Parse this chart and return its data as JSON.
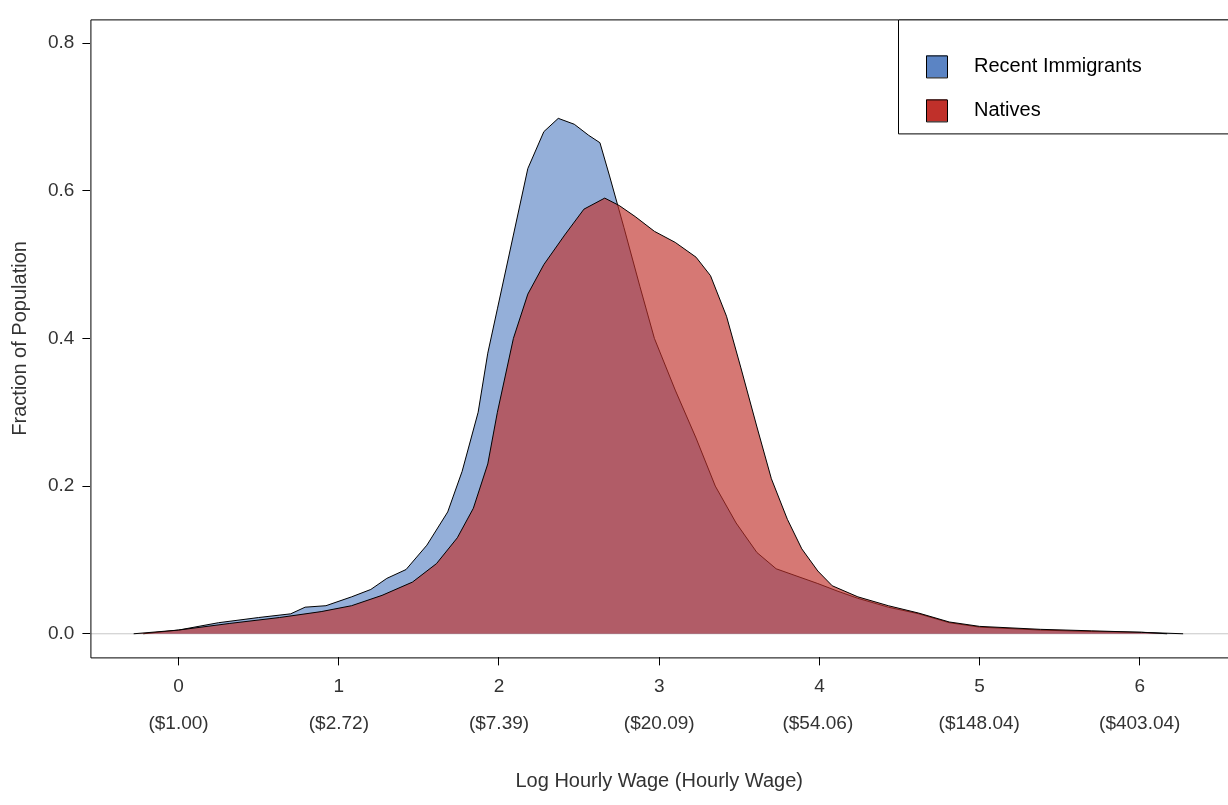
{
  "chart_data": {
    "type": "area",
    "xlabel": "Log Hourly Wage (Hourly Wage)",
    "ylabel": "Fraction of Population",
    "xlim": [
      -0.55,
      6.55
    ],
    "ylim": [
      -0.032,
      0.832
    ],
    "xticks": [
      0,
      1,
      2,
      3,
      4,
      5,
      6
    ],
    "x2lim": [
      0.577,
      699.2
    ],
    "log": "x2",
    "x2ticks": [
      {
        "value": 1,
        "label": "($1.00)"
      },
      {
        "value": 2.72,
        "label": "($2.72)"
      },
      {
        "value": 7.39,
        "label": "($7.39)"
      },
      {
        "value": 20.09,
        "label": "($20.09)"
      },
      {
        "value": 54.06,
        "label": "($54.06)"
      },
      {
        "value": 148.04,
        "label": "($148.04)"
      },
      {
        "value": 403.04,
        "label": "($403.04)"
      }
    ],
    "yticks": [
      {
        "value": 0,
        "label": "0.0"
      },
      {
        "value": 0.2,
        "label": "0.2"
      },
      {
        "value": 0.4,
        "label": "0.4"
      },
      {
        "value": 0.6,
        "label": "0.6"
      },
      {
        "value": 0.8,
        "label": "0.8"
      }
    ],
    "grid": false,
    "legend": "top right",
    "ref_lines": [
      {
        "axis": "y",
        "value": 0,
        "color": "#c8c8c8"
      }
    ],
    "series": [
      {
        "name": "Natives",
        "color": "#c0302a",
        "x": [
          -0.28,
          0,
          0.32,
          0.63,
          0.89,
          1.08,
          1.27,
          1.46,
          1.61,
          1.74,
          1.84,
          1.93,
          1.99,
          2.09,
          2.18,
          2.28,
          2.41,
          2.53,
          2.66,
          2.75,
          2.85,
          2.97,
          3.1,
          3.23,
          3.32,
          3.42,
          3.51,
          3.61,
          3.7,
          3.8,
          3.89,
          3.99,
          4.08,
          4.24,
          4.43,
          4.62,
          4.81,
          5.0,
          5.38,
          5.7,
          6.01,
          6.17
        ],
        "values": [
          0,
          0.005,
          0.014,
          0.022,
          0.03,
          0.038,
          0.052,
          0.07,
          0.095,
          0.13,
          0.17,
          0.23,
          0.3,
          0.4,
          0.46,
          0.5,
          0.54,
          0.575,
          0.59,
          0.58,
          0.565,
          0.545,
          0.53,
          0.51,
          0.485,
          0.43,
          0.36,
          0.28,
          0.21,
          0.155,
          0.115,
          0.085,
          0.065,
          0.05,
          0.038,
          0.028,
          0.016,
          0.01,
          0.006,
          0.004,
          0.002,
          0
        ]
      },
      {
        "name": "Recent Immigrants",
        "color": "#5b84c4",
        "x": [
          -0.22,
          0,
          0.25,
          0.5,
          0.7,
          0.79,
          0.92,
          1.08,
          1.2,
          1.3,
          1.42,
          1.55,
          1.68,
          1.77,
          1.87,
          1.93,
          1.99,
          2.09,
          2.18,
          2.28,
          2.37,
          2.47,
          2.56,
          2.63,
          2.69,
          2.78,
          2.88,
          2.97,
          3.1,
          3.23,
          3.35,
          3.48,
          3.61,
          3.73,
          3.86,
          3.99,
          4.11,
          4.24,
          4.43,
          4.62,
          4.81,
          5.0,
          5.38,
          5.7,
          6.01,
          6.27
        ],
        "values": [
          0,
          0.005,
          0.015,
          0.022,
          0.027,
          0.036,
          0.038,
          0.05,
          0.06,
          0.075,
          0.087,
          0.12,
          0.165,
          0.22,
          0.3,
          0.38,
          0.44,
          0.54,
          0.63,
          0.68,
          0.698,
          0.69,
          0.675,
          0.665,
          0.62,
          0.55,
          0.47,
          0.4,
          0.33,
          0.265,
          0.2,
          0.15,
          0.11,
          0.088,
          0.078,
          0.068,
          0.058,
          0.048,
          0.036,
          0.027,
          0.015,
          0.009,
          0.005,
          0.003,
          0.002,
          0
        ]
      }
    ]
  }
}
